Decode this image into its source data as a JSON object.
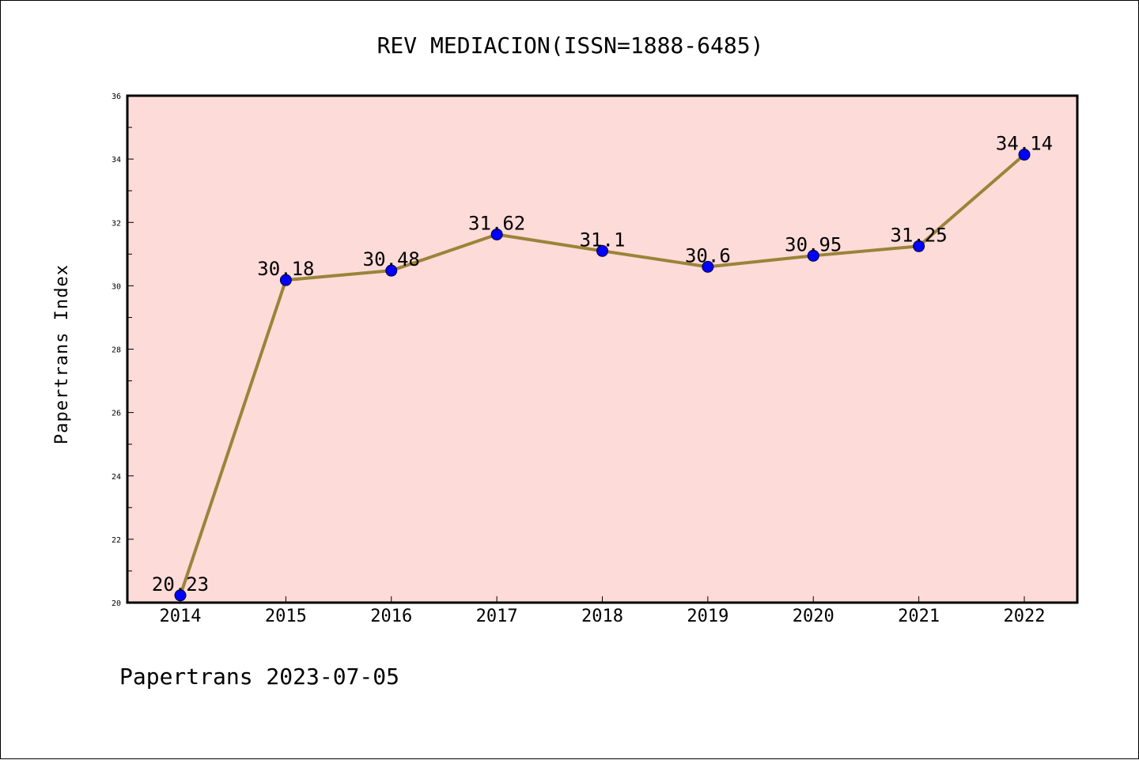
{
  "chart_data": {
    "type": "line",
    "title": "REV MEDIACION(ISSN=1888-6485)",
    "xlabel": "",
    "ylabel": "Papertrans Index",
    "categories": [
      "2014",
      "2015",
      "2016",
      "2017",
      "2018",
      "2019",
      "2020",
      "2021",
      "2022"
    ],
    "series": [
      {
        "values": [
          20.23,
          30.18,
          30.48,
          31.62,
          31.1,
          30.6,
          30.95,
          31.25,
          34.14
        ],
        "data_labels": [
          "20.23",
          "30.18",
          "30.48",
          "31.62",
          "31.1",
          "30.6",
          "30.95",
          "31.25",
          "34.14"
        ]
      }
    ],
    "ylim": [
      20,
      36
    ],
    "yticks": [
      "20",
      "22",
      "24",
      "26",
      "28",
      "30",
      "32",
      "34",
      "36"
    ],
    "grid": false,
    "legend": "none",
    "footer": "Papertrans 2023-07-05"
  },
  "colors": {
    "plot_background": "#fddbd8",
    "line": "#9b8339",
    "marker_fill": "#0000ff",
    "marker_edge": "#000033",
    "axes": "#000000"
  }
}
